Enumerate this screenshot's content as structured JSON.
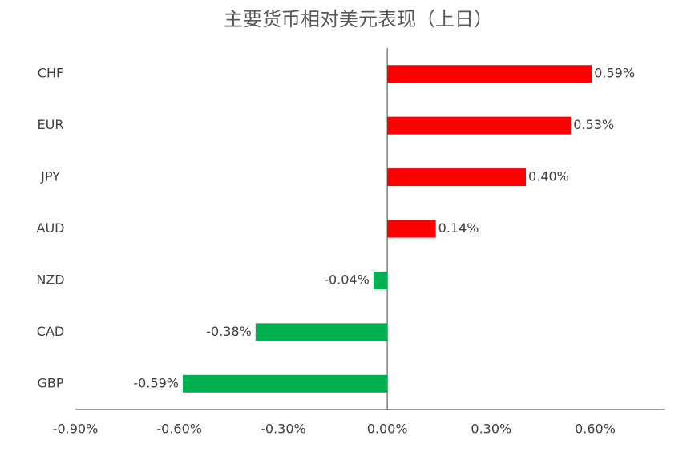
{
  "chart_data": {
    "type": "hbar",
    "title": "主要货币相对美元表现（上日）",
    "categories": [
      "CHF",
      "EUR",
      "JPY",
      "AUD",
      "NZD",
      "CAD",
      "GBP"
    ],
    "values": [
      0.59,
      0.53,
      0.4,
      0.14,
      -0.04,
      -0.38,
      -0.59
    ],
    "value_labels": [
      "0.59%",
      "0.53%",
      "0.40%",
      "0.14%",
      "-0.04%",
      "-0.38%",
      "-0.59%"
    ],
    "colors": [
      "#ff0000",
      "#ff0000",
      "#ff0000",
      "#ff0000",
      "#00b050",
      "#00b050",
      "#00b050"
    ],
    "xlim": [
      -0.9,
      0.8
    ],
    "xticks": [
      {
        "value": -0.9,
        "label": "-0.90%"
      },
      {
        "value": -0.6,
        "label": "-0.60%"
      },
      {
        "value": -0.3,
        "label": "-0.30%"
      },
      {
        "value": 0,
        "label": "0.00%"
      },
      {
        "value": 0.3,
        "label": "0.30%"
      },
      {
        "value": 0.6,
        "label": "0.60%"
      }
    ]
  }
}
